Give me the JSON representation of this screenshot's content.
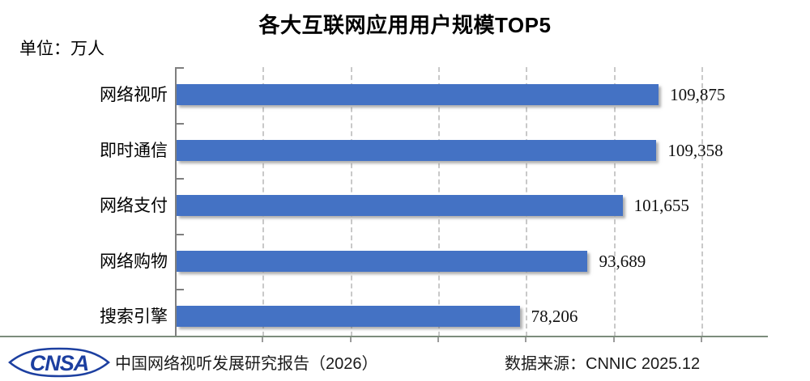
{
  "title": "各大互联网应用用户规模TOP5",
  "unit_label": "单位：万人",
  "footer": {
    "logo_text": "CNSA",
    "report": "中国网络视听发展研究报告（2026）",
    "source": "数据来源：CNNIC 2025.12"
  },
  "colors": {
    "bar": "#4472C4",
    "axis": "#7F7F7F",
    "gridline": "#C9C9C9",
    "baseline": "#7C8C7C",
    "logo_blue": "#1C3FA0"
  },
  "chart_data": {
    "type": "bar",
    "orientation": "horizontal",
    "title": "各大互联网应用用户规模TOP5",
    "unit": "万人",
    "categories": [
      "网络视听",
      "即时通信",
      "网络支付",
      "网络购物",
      "搜索引擎"
    ],
    "values": [
      109875,
      109358,
      101655,
      93689,
      78206
    ],
    "value_labels": [
      "109,875",
      "109,358",
      "101,655",
      "93,689",
      "78,206"
    ],
    "xlabel": "",
    "ylabel": "",
    "xlim": [
      0,
      120000
    ],
    "gridline_interval": 20000,
    "grid": "vertical-dashed",
    "legend": "none",
    "data_labels": "outside-end"
  }
}
